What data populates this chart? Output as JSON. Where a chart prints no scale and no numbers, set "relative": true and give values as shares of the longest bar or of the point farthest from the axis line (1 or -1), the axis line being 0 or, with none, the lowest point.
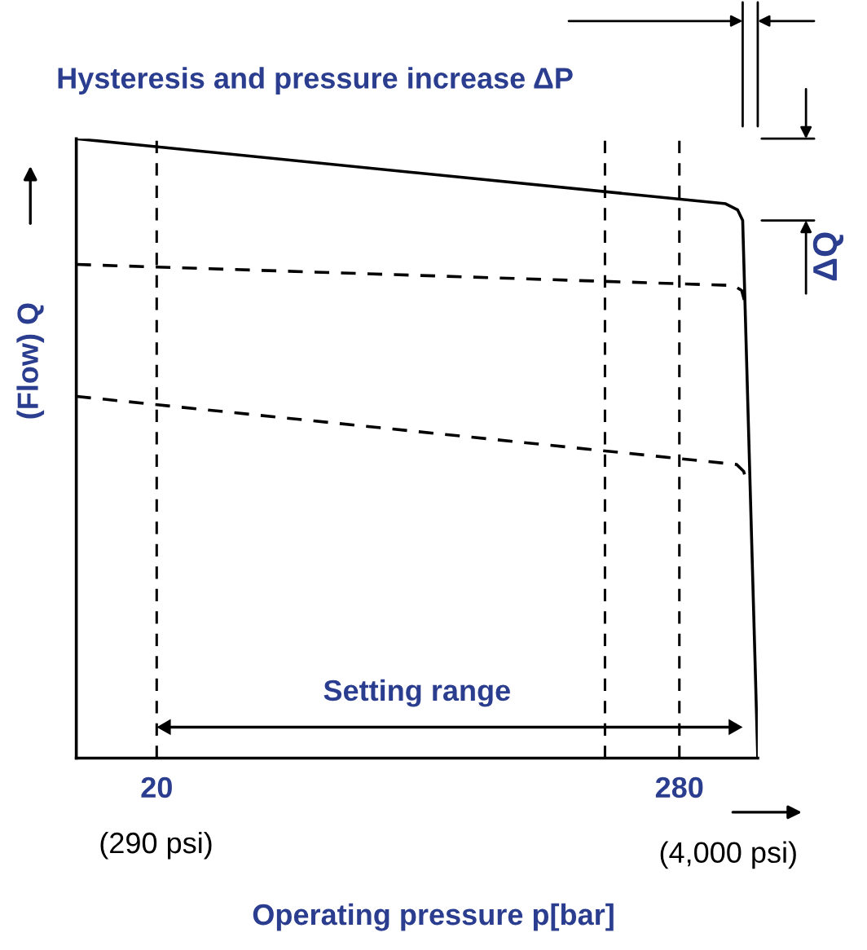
{
  "chart_data": {
    "type": "line",
    "relative": true,
    "title": "Hysteresis and pressure increase ΔP",
    "xlabel": "Operating pressure p[bar]",
    "ylabel": "(Flow) Q",
    "xlim": [
      -20,
      319
    ],
    "xticks": [
      20,
      280
    ],
    "grid": false,
    "series": [
      {
        "color": "#000000",
        "line_style": "solid",
        "x": [
          -20,
          303,
          309,
          311.5,
          319
        ],
        "values": [
          1.0,
          0.895,
          0.885,
          0.868,
          0.0
        ]
      },
      {
        "color": "#000000",
        "line_style": "dashed",
        "x": [
          -20,
          307,
          311,
          312.5
        ],
        "values": [
          0.797,
          0.763,
          0.755,
          0.737
        ]
      },
      {
        "color": "#000000",
        "line_style": "dashed",
        "x": [
          -20,
          308.5,
          312,
          314
        ],
        "values": [
          0.584,
          0.474,
          0.463,
          0.44
        ]
      }
    ],
    "ref_lines": [
      {
        "axis": "x",
        "value": 20,
        "color": "#000000",
        "line_style": "dashed"
      },
      {
        "axis": "x",
        "value": 243,
        "color": "#000000",
        "line_style": "dashed"
      },
      {
        "axis": "x",
        "value": 280,
        "color": "#000000",
        "line_style": "dashed"
      }
    ],
    "annotations": [
      "Setting range",
      "ΔQ",
      "(290 psi)",
      "(4,000 psi)"
    ]
  }
}
